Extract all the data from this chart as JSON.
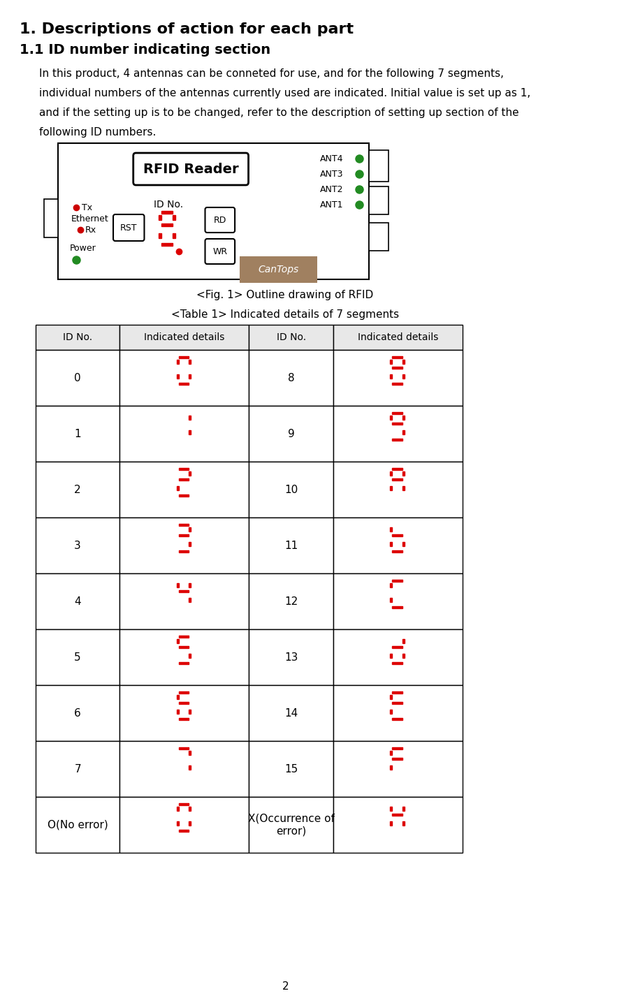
{
  "title1": "1. Descriptions of action for each part",
  "title2": "1.1 ID number indicating section",
  "body_text": "In this product, 4 antennas can be conneted for use, and for the following 7 segments,\nindividual numbers of the antennas currently used are indicated. Initial value is set up as 1,\nand if the setting up is to be changed, refer to the description of setting up section of the\nfollowing ID numbers.",
  "fig_caption": "<Fig. 1> Outline drawing of RFID",
  "table_caption": "<Table 1> Indicated details of 7 segments",
  "table_headers": [
    "ID No.",
    "Indicated details",
    "ID No.",
    "Indicated details"
  ],
  "table_rows_left": [
    "0",
    "1",
    "2",
    "3",
    "4",
    "5",
    "6",
    "7",
    "O(No error)"
  ],
  "table_rows_right": [
    "8",
    "9",
    "10",
    "11",
    "12",
    "13",
    "14",
    "15",
    "X(Occurrence of\nerror)"
  ],
  "seg_digits_left": [
    "0",
    "1",
    "2",
    "3",
    "4",
    "5",
    "6",
    "7",
    "0"
  ],
  "seg_digits_right": [
    "8",
    "9",
    "A",
    "b",
    "C",
    "d",
    "E",
    "F",
    "H"
  ],
  "page_number": "2",
  "bg_color": "#ffffff",
  "text_color": "#000000",
  "seg_color": "#dd0000",
  "green_dot": "#228B22",
  "red_dot": "#cc0000",
  "tan_color": "#a08060"
}
